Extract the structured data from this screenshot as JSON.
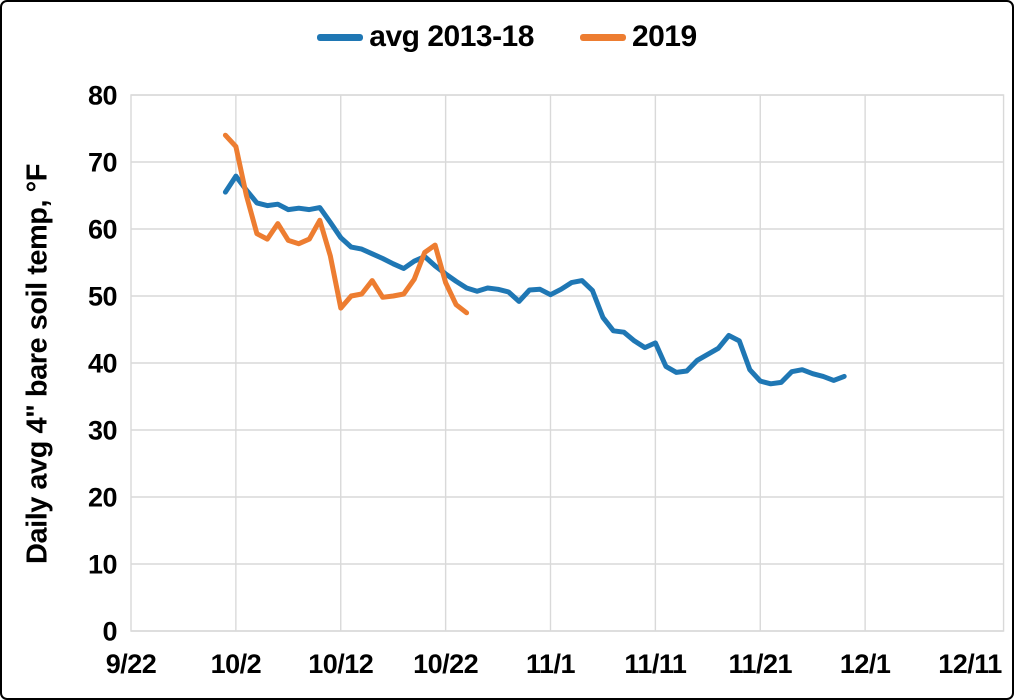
{
  "colors": {
    "accent_blue": "#1F77B4",
    "accent_orange": "#ED7D31",
    "gridline": "#D9D9D9",
    "text": "#000000",
    "background": "#FFFFFF"
  },
  "chart_data": {
    "type": "line",
    "title": "",
    "xlabel": "",
    "ylabel": "Daily avg 4\" bare soil temp, °F",
    "ylim": [
      0,
      80
    ],
    "x_axis_start_label": "9/22",
    "x_max_day": 83.2,
    "grid": true,
    "legend_position": "top-center",
    "y_ticks": [
      {
        "label": "0",
        "value": 0
      },
      {
        "label": "10",
        "value": 10
      },
      {
        "label": "20",
        "value": 20
      },
      {
        "label": "30",
        "value": 30
      },
      {
        "label": "40",
        "value": 40
      },
      {
        "label": "50",
        "value": 50
      },
      {
        "label": "60",
        "value": 60
      },
      {
        "label": "70",
        "value": 70
      },
      {
        "label": "80",
        "value": 80
      }
    ],
    "x_ticks": [
      {
        "label": "9/22",
        "day": 0,
        "gridline": false
      },
      {
        "label": "10/2",
        "day": 10,
        "gridline": true
      },
      {
        "label": "10/12",
        "day": 20,
        "gridline": true
      },
      {
        "label": "10/22",
        "day": 30,
        "gridline": true
      },
      {
        "label": "11/1",
        "day": 40,
        "gridline": true
      },
      {
        "label": "11/11",
        "day": 50,
        "gridline": true
      },
      {
        "label": "11/21",
        "day": 60,
        "gridline": true
      },
      {
        "label": "12/1",
        "day": 70,
        "gridline": true
      },
      {
        "label": "12/11",
        "day": 80,
        "gridline": false
      }
    ],
    "series": [
      {
        "name": "avg 2013-18",
        "color": "#1F77B4",
        "start_day": 9,
        "dates": [
          "10/1",
          "10/2",
          "10/3",
          "10/4",
          "10/5",
          "10/6",
          "10/7",
          "10/8",
          "10/9",
          "10/10",
          "10/11",
          "10/12",
          "10/13",
          "10/14",
          "10/15",
          "10/16",
          "10/17",
          "10/18",
          "10/19",
          "10/20",
          "10/21",
          "10/22",
          "10/23",
          "10/24",
          "10/25",
          "10/26",
          "10/27",
          "10/28",
          "10/29",
          "10/30",
          "10/31",
          "11/1",
          "11/2",
          "11/3",
          "11/4",
          "11/5",
          "11/6",
          "11/7",
          "11/8",
          "11/9",
          "11/10",
          "11/11",
          "11/12",
          "11/13",
          "11/14",
          "11/15",
          "11/16",
          "11/17",
          "11/18",
          "11/19",
          "11/20",
          "11/21",
          "11/22",
          "11/23",
          "11/24",
          "11/25",
          "11/26",
          "11/27",
          "11/28",
          "11/29"
        ],
        "values": [
          65.5,
          67.9,
          65.8,
          63.9,
          63.5,
          63.7,
          62.9,
          63.1,
          62.9,
          63.2,
          61.0,
          58.7,
          57.3,
          57.0,
          56.3,
          55.6,
          54.8,
          54.1,
          55.2,
          55.9,
          54.5,
          53.3,
          52.2,
          51.2,
          50.7,
          51.2,
          51.0,
          50.6,
          49.2,
          50.9,
          51.0,
          50.2,
          51.0,
          52.0,
          52.3,
          50.8,
          46.8,
          44.8,
          44.6,
          43.3,
          42.3,
          43.0,
          39.5,
          38.6,
          38.8,
          40.4,
          41.3,
          42.2,
          44.1,
          43.3,
          39.0,
          37.3,
          36.9,
          37.1,
          38.7,
          39.0,
          38.4,
          38.0,
          37.4,
          38.0
        ]
      },
      {
        "name": "2019",
        "color": "#ED7D31",
        "start_day": 9,
        "dates": [
          "10/1",
          "10/2",
          "10/3",
          "10/4",
          "10/5",
          "10/6",
          "10/7",
          "10/8",
          "10/9",
          "10/10",
          "10/11",
          "10/12",
          "10/13",
          "10/14",
          "10/15",
          "10/16",
          "10/17",
          "10/18",
          "10/19",
          "10/20",
          "10/21",
          "10/22",
          "10/23",
          "10/24"
        ],
        "values": [
          74.0,
          72.3,
          65.0,
          59.3,
          58.5,
          60.8,
          58.3,
          57.8,
          58.5,
          61.3,
          56.0,
          48.2,
          50.0,
          50.3,
          52.3,
          49.8,
          50.0,
          50.3,
          52.5,
          56.5,
          57.6,
          52.0,
          48.7,
          47.5
        ]
      }
    ]
  }
}
